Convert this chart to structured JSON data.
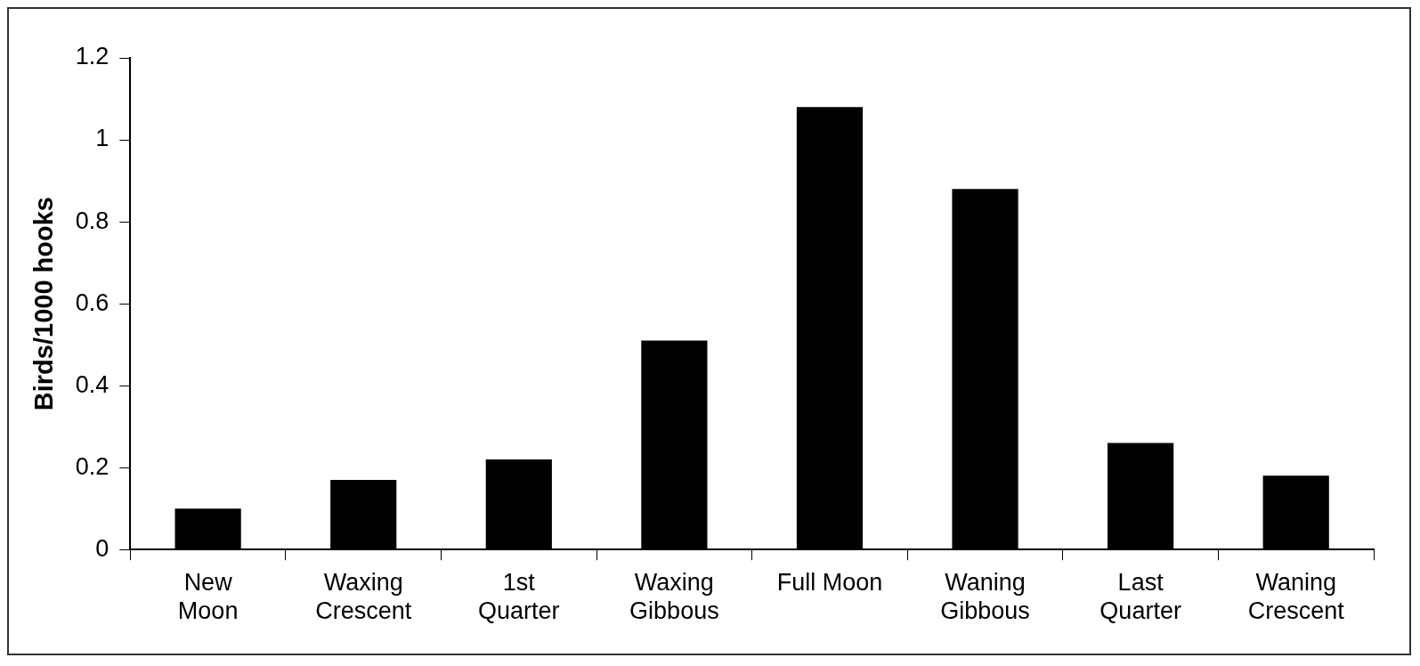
{
  "chart_data": {
    "type": "bar",
    "ylabel": "Birds/1000 hooks",
    "categories": [
      "New\nMoon",
      "Waxing\nCrescent",
      "1st\nQuarter",
      "Waxing\nGibbous",
      "Full Moon",
      "Waning\nGibbous",
      "Last\nQuarter",
      "Waning\nCrescent"
    ],
    "values": [
      0.1,
      0.17,
      0.22,
      0.51,
      1.08,
      0.88,
      0.26,
      0.18
    ],
    "color": "#000000",
    "ylim": [
      0,
      1.2
    ],
    "yticks": [
      0,
      0.2,
      0.4,
      0.6,
      0.8,
      1,
      1.2
    ],
    "grid": false,
    "legend": false
  }
}
